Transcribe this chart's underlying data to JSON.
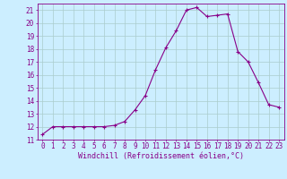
{
  "x": [
    0,
    1,
    2,
    3,
    4,
    5,
    6,
    7,
    8,
    9,
    10,
    11,
    12,
    13,
    14,
    15,
    16,
    17,
    18,
    19,
    20,
    21,
    22,
    23
  ],
  "y": [
    11.4,
    12.0,
    12.0,
    12.0,
    12.0,
    12.0,
    12.0,
    12.1,
    12.4,
    13.3,
    14.4,
    16.4,
    18.1,
    19.4,
    21.0,
    21.2,
    20.5,
    20.6,
    20.7,
    17.8,
    17.0,
    15.4,
    13.7,
    13.5
  ],
  "line_color": "#880088",
  "marker": "+",
  "marker_size": 3.5,
  "marker_linewidth": 0.8,
  "xlim": [
    -0.5,
    23.5
  ],
  "ylim": [
    11,
    21.5
  ],
  "yticks": [
    11,
    12,
    13,
    14,
    15,
    16,
    17,
    18,
    19,
    20,
    21
  ],
  "xticks": [
    0,
    1,
    2,
    3,
    4,
    5,
    6,
    7,
    8,
    9,
    10,
    11,
    12,
    13,
    14,
    15,
    16,
    17,
    18,
    19,
    20,
    21,
    22,
    23
  ],
  "xlabel": "Windchill (Refroidissement éolien,°C)",
  "background_color": "#cceeff",
  "grid_color": "#aacccc",
  "tick_color": "#880088",
  "label_color": "#880088",
  "tick_fontsize": 5.5,
  "xlabel_fontsize": 6.0,
  "line_width": 0.8
}
